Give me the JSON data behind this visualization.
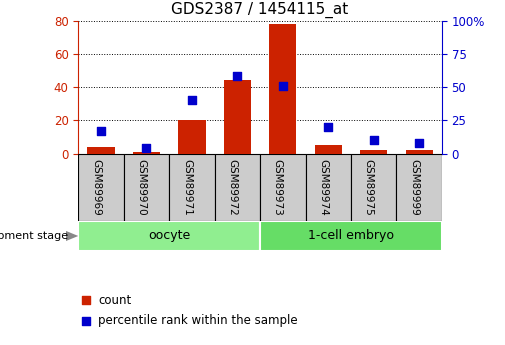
{
  "title": "GDS2387 / 1454115_at",
  "samples": [
    "GSM89969",
    "GSM89970",
    "GSM89971",
    "GSM89972",
    "GSM89973",
    "GSM89974",
    "GSM89975",
    "GSM89999"
  ],
  "count": [
    4,
    1,
    20,
    44,
    78,
    5,
    2,
    2
  ],
  "percentile": [
    17,
    4,
    40,
    58,
    51,
    20,
    10,
    8
  ],
  "groups": [
    {
      "label": "oocyte",
      "start": 0,
      "end": 4,
      "color": "#90ee90"
    },
    {
      "label": "1-cell embryo",
      "start": 4,
      "end": 8,
      "color": "#66dd66"
    }
  ],
  "bar_color": "#cc2200",
  "dot_color": "#0000cc",
  "left_ylim": [
    0,
    80
  ],
  "left_yticks": [
    0,
    20,
    40,
    60,
    80
  ],
  "right_ylim": [
    0,
    100
  ],
  "right_yticks": [
    0,
    25,
    50,
    75,
    100
  ],
  "right_ytick_labels": [
    "0",
    "25",
    "50",
    "75",
    "100%"
  ],
  "title_fontsize": 11,
  "grid_color": "#000000",
  "development_stage_label": "development stage",
  "xtick_bg": "#cccccc",
  "count_legend": "count",
  "pct_legend": "percentile rank within the sample"
}
